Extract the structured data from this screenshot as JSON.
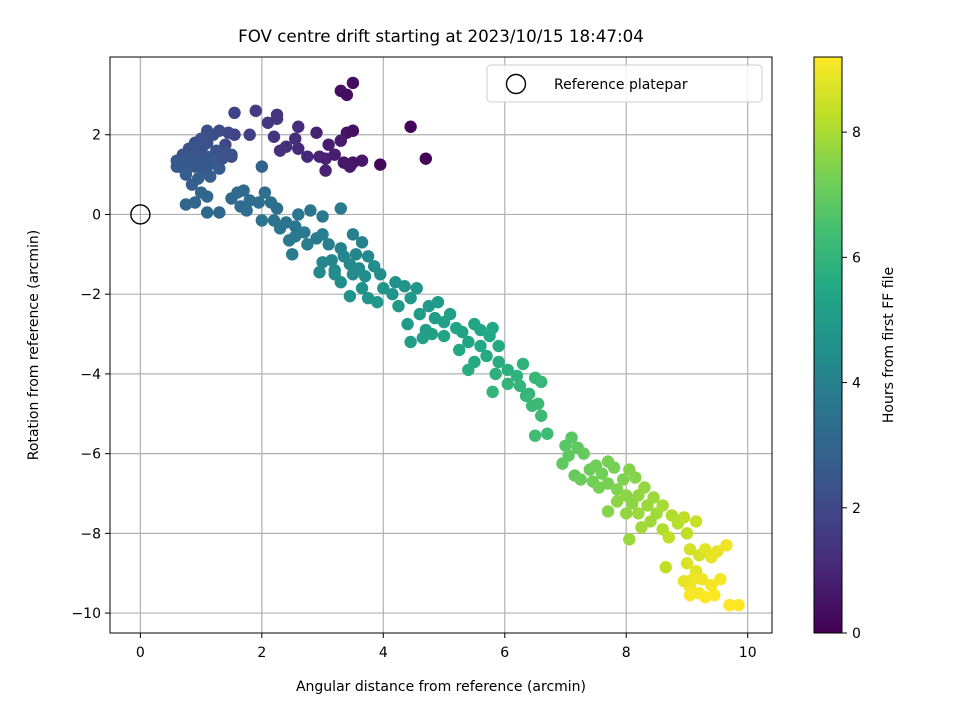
{
  "chart_data": {
    "type": "scatter",
    "title": "FOV centre drift starting at 2023/10/15 18:47:04",
    "xlabel": "Angular distance from reference (arcmin)",
    "ylabel": "Rotation from reference (arcmin)",
    "colorbar_label": "Hours from first FF file",
    "xlim": [
      -0.5,
      10.4
    ],
    "ylim": [
      -10.5,
      3.95
    ],
    "xticks": [
      0,
      2,
      4,
      6,
      8,
      10
    ],
    "yticks": [
      -10,
      -8,
      -6,
      -4,
      -2,
      0,
      2
    ],
    "xtick_labels": [
      "0",
      "2",
      "4",
      "6",
      "8",
      "10"
    ],
    "ytick_labels": [
      "−10",
      "−8",
      "−6",
      "−4",
      "−2",
      "0",
      "2"
    ],
    "colorbar_range": [
      0,
      9.2
    ],
    "colorbar_ticks": [
      0,
      2,
      4,
      6,
      8
    ],
    "colorbar_tick_labels": [
      "0",
      "2",
      "4",
      "6",
      "8"
    ],
    "colormap": "viridis",
    "grid": true,
    "legend": {
      "placement": "top-right",
      "entries": [
        "Reference platepar"
      ]
    },
    "reference_point": {
      "x": 0,
      "y": 0,
      "label": "Reference platepar"
    },
    "series": [
      {
        "points": [
          [
            3.5,
            3.3,
            0.3
          ],
          [
            3.4,
            3.0,
            0.3
          ],
          [
            3.3,
            3.1,
            0.4
          ],
          [
            4.45,
            2.2,
            0.1
          ],
          [
            4.7,
            1.4,
            0.1
          ],
          [
            3.95,
            1.25,
            0.2
          ],
          [
            3.4,
            2.05,
            0.5
          ],
          [
            3.5,
            2.1,
            0.4
          ],
          [
            3.65,
            1.35,
            0.6
          ],
          [
            3.5,
            1.3,
            0.5
          ],
          [
            3.35,
            1.3,
            0.6
          ],
          [
            3.45,
            1.2,
            0.6
          ],
          [
            3.1,
            1.75,
            0.8
          ],
          [
            3.05,
            1.4,
            0.9
          ],
          [
            3.05,
            1.1,
            0.9
          ],
          [
            2.95,
            1.45,
            0.9
          ],
          [
            2.9,
            2.05,
            0.9
          ],
          [
            3.2,
            1.5,
            0.8
          ],
          [
            3.3,
            1.85,
            0.7
          ],
          [
            2.75,
            1.45,
            1.0
          ],
          [
            2.6,
            1.65,
            1.1
          ],
          [
            2.55,
            1.9,
            1.2
          ],
          [
            2.6,
            2.2,
            1.2
          ],
          [
            2.3,
            1.6,
            1.3
          ],
          [
            2.4,
            1.7,
            1.3
          ],
          [
            2.2,
            1.95,
            1.4
          ],
          [
            2.1,
            2.3,
            1.5
          ],
          [
            2.25,
            2.4,
            1.5
          ],
          [
            2.25,
            2.5,
            1.4
          ],
          [
            1.9,
            2.6,
            1.6
          ],
          [
            1.8,
            2.0,
            1.7
          ],
          [
            1.55,
            2.55,
            1.8
          ],
          [
            1.55,
            2.0,
            1.8
          ],
          [
            1.45,
            2.05,
            1.9
          ],
          [
            1.4,
            1.75,
            2.0
          ],
          [
            1.5,
            1.45,
            2.0
          ],
          [
            1.3,
            2.1,
            2.1
          ],
          [
            1.2,
            2.0,
            2.1
          ],
          [
            1.1,
            2.1,
            2.2
          ],
          [
            1.1,
            1.8,
            2.2
          ],
          [
            1.0,
            1.9,
            2.3
          ],
          [
            0.9,
            1.8,
            2.3
          ],
          [
            0.8,
            1.65,
            2.4
          ],
          [
            0.7,
            1.5,
            2.4
          ],
          [
            0.6,
            1.35,
            2.5
          ],
          [
            0.65,
            1.2,
            2.5
          ],
          [
            0.75,
            1.1,
            2.6
          ],
          [
            0.85,
            1.3,
            2.6
          ],
          [
            0.9,
            1.5,
            2.5
          ],
          [
            1.0,
            1.6,
            2.4
          ],
          [
            1.1,
            1.45,
            2.5
          ],
          [
            1.2,
            1.3,
            2.6
          ],
          [
            1.3,
            1.15,
            2.7
          ],
          [
            1.05,
            1.05,
            2.7
          ],
          [
            0.95,
            0.9,
            2.8
          ],
          [
            0.85,
            0.75,
            2.8
          ],
          [
            0.75,
            1.0,
            2.7
          ],
          [
            0.6,
            1.2,
            2.6
          ],
          [
            1.15,
            0.95,
            2.8
          ],
          [
            1.25,
            1.6,
            2.4
          ],
          [
            1.35,
            1.4,
            2.4
          ],
          [
            0.9,
            1.2,
            2.5
          ],
          [
            0.8,
            1.4,
            2.5
          ],
          [
            0.7,
            1.3,
            2.6
          ],
          [
            1.0,
            1.35,
            2.5
          ],
          [
            1.1,
            1.2,
            2.6
          ],
          [
            1.5,
            1.5,
            2.3
          ],
          [
            1.4,
            1.55,
            2.3
          ],
          [
            0.95,
            1.65,
            2.4
          ],
          [
            1.05,
            1.75,
            2.3
          ],
          [
            2.0,
            1.2,
            2.9
          ],
          [
            1.0,
            0.55,
            3.0
          ],
          [
            1.1,
            0.45,
            3.0
          ],
          [
            0.9,
            0.3,
            3.0
          ],
          [
            0.75,
            0.25,
            3.0
          ],
          [
            1.1,
            0.05,
            3.1
          ],
          [
            1.3,
            0.05,
            3.1
          ],
          [
            1.5,
            0.4,
            3.1
          ],
          [
            1.6,
            0.55,
            3.2
          ],
          [
            1.7,
            0.6,
            3.2
          ],
          [
            1.8,
            0.35,
            3.3
          ],
          [
            2.05,
            0.55,
            3.3
          ],
          [
            1.65,
            0.2,
            3.2
          ],
          [
            1.75,
            0.1,
            3.3
          ],
          [
            1.95,
            0.3,
            3.3
          ],
          [
            2.15,
            0.3,
            3.4
          ],
          [
            2.25,
            0.15,
            3.4
          ],
          [
            2.0,
            -0.15,
            3.5
          ],
          [
            2.2,
            -0.15,
            3.5
          ],
          [
            2.4,
            -0.2,
            3.5
          ],
          [
            2.55,
            -0.3,
            3.6
          ],
          [
            2.6,
            0.0,
            3.6
          ],
          [
            2.8,
            0.1,
            3.6
          ],
          [
            2.55,
            -0.55,
            3.7
          ],
          [
            2.45,
            -0.65,
            3.7
          ],
          [
            2.3,
            -0.35,
            3.6
          ],
          [
            2.7,
            -0.45,
            3.7
          ],
          [
            2.9,
            -0.6,
            3.8
          ],
          [
            2.5,
            -1.0,
            3.8
          ],
          [
            2.75,
            -0.75,
            3.8
          ],
          [
            3.0,
            -0.5,
            3.9
          ],
          [
            3.1,
            -0.75,
            3.9
          ],
          [
            3.3,
            -0.85,
            4.0
          ],
          [
            3.0,
            -0.05,
            3.7
          ],
          [
            3.3,
            0.15,
            3.7
          ],
          [
            3.5,
            -0.5,
            4.0
          ],
          [
            3.65,
            -0.7,
            4.1
          ],
          [
            3.55,
            -1.0,
            4.2
          ],
          [
            3.35,
            -1.05,
            4.2
          ],
          [
            3.15,
            -1.15,
            4.2
          ],
          [
            3.0,
            -1.2,
            4.2
          ],
          [
            2.95,
            -1.45,
            4.3
          ],
          [
            3.2,
            -1.4,
            4.3
          ],
          [
            3.45,
            -1.25,
            4.3
          ],
          [
            3.6,
            -1.35,
            4.4
          ],
          [
            3.75,
            -1.05,
            4.3
          ],
          [
            3.85,
            -1.3,
            4.4
          ],
          [
            3.95,
            -1.5,
            4.5
          ],
          [
            3.7,
            -1.55,
            4.5
          ],
          [
            3.5,
            -1.5,
            4.4
          ],
          [
            3.3,
            -1.7,
            4.5
          ],
          [
            3.2,
            -1.5,
            4.4
          ],
          [
            3.65,
            -1.85,
            4.6
          ],
          [
            3.45,
            -2.05,
            4.6
          ],
          [
            3.75,
            -2.1,
            4.7
          ],
          [
            4.0,
            -1.85,
            4.7
          ],
          [
            4.15,
            -2.0,
            4.7
          ],
          [
            3.9,
            -2.2,
            4.8
          ],
          [
            4.2,
            -1.7,
            4.6
          ],
          [
            4.35,
            -1.8,
            4.7
          ],
          [
            4.55,
            -1.85,
            4.8
          ],
          [
            4.45,
            -2.1,
            4.9
          ],
          [
            4.25,
            -2.3,
            4.9
          ],
          [
            4.6,
            -2.5,
            5.0
          ],
          [
            4.4,
            -2.75,
            5.0
          ],
          [
            4.75,
            -2.3,
            5.0
          ],
          [
            4.9,
            -2.2,
            5.0
          ],
          [
            4.85,
            -2.6,
            5.1
          ],
          [
            4.7,
            -2.9,
            5.1
          ],
          [
            4.45,
            -3.2,
            5.1
          ],
          [
            4.65,
            -3.1,
            5.2
          ],
          [
            4.8,
            -3.0,
            5.2
          ],
          [
            5.0,
            -2.7,
            5.2
          ],
          [
            5.1,
            -2.5,
            5.2
          ],
          [
            5.2,
            -2.85,
            5.3
          ],
          [
            5.0,
            -3.05,
            5.3
          ],
          [
            5.3,
            -2.95,
            5.3
          ],
          [
            5.5,
            -2.75,
            5.4
          ],
          [
            5.6,
            -2.9,
            5.4
          ],
          [
            5.4,
            -3.2,
            5.4
          ],
          [
            5.25,
            -3.4,
            5.5
          ],
          [
            5.6,
            -3.3,
            5.5
          ],
          [
            5.75,
            -3.05,
            5.5
          ],
          [
            5.8,
            -2.85,
            5.5
          ],
          [
            5.9,
            -3.3,
            5.6
          ],
          [
            5.7,
            -3.55,
            5.6
          ],
          [
            5.5,
            -3.7,
            5.6
          ],
          [
            5.4,
            -3.9,
            5.7
          ],
          [
            5.9,
            -3.7,
            5.7
          ],
          [
            5.85,
            -4.0,
            5.8
          ],
          [
            6.05,
            -3.9,
            5.8
          ],
          [
            6.2,
            -4.05,
            5.9
          ],
          [
            6.3,
            -3.75,
            5.9
          ],
          [
            6.25,
            -4.3,
            6.0
          ],
          [
            6.4,
            -4.5,
            6.0
          ],
          [
            6.05,
            -4.25,
            6.0
          ],
          [
            5.8,
            -4.45,
            6.0
          ],
          [
            6.5,
            -4.1,
            6.1
          ],
          [
            6.6,
            -4.2,
            6.1
          ],
          [
            6.45,
            -4.8,
            6.2
          ],
          [
            6.6,
            -5.05,
            6.2
          ],
          [
            6.5,
            -5.55,
            6.3
          ],
          [
            6.7,
            -5.5,
            6.3
          ],
          [
            6.55,
            -4.75,
            6.2
          ],
          [
            6.35,
            -4.55,
            6.1
          ],
          [
            7.0,
            -5.8,
            6.8
          ],
          [
            7.1,
            -5.6,
            6.8
          ],
          [
            7.05,
            -6.05,
            6.9
          ],
          [
            6.95,
            -6.25,
            6.9
          ],
          [
            7.2,
            -5.85,
            6.9
          ],
          [
            7.3,
            -6.0,
            7.0
          ],
          [
            7.15,
            -6.55,
            7.0
          ],
          [
            7.25,
            -6.65,
            7.1
          ],
          [
            7.4,
            -6.4,
            7.1
          ],
          [
            7.5,
            -6.3,
            7.2
          ],
          [
            7.45,
            -6.7,
            7.2
          ],
          [
            7.6,
            -6.5,
            7.2
          ],
          [
            7.7,
            -6.2,
            7.3
          ],
          [
            7.8,
            -6.35,
            7.3
          ],
          [
            7.7,
            -6.75,
            7.3
          ],
          [
            7.55,
            -6.85,
            7.3
          ],
          [
            7.85,
            -6.9,
            7.4
          ],
          [
            7.95,
            -6.65,
            7.4
          ],
          [
            8.05,
            -6.4,
            7.5
          ],
          [
            8.15,
            -6.6,
            7.5
          ],
          [
            8.0,
            -7.05,
            7.6
          ],
          [
            7.85,
            -7.2,
            7.6
          ],
          [
            7.7,
            -7.45,
            7.5
          ],
          [
            8.1,
            -7.25,
            7.6
          ],
          [
            8.2,
            -7.05,
            7.7
          ],
          [
            8.3,
            -6.85,
            7.7
          ],
          [
            8.35,
            -7.3,
            7.8
          ],
          [
            8.2,
            -7.5,
            7.8
          ],
          [
            8.0,
            -7.5,
            7.7
          ],
          [
            8.45,
            -7.1,
            7.8
          ],
          [
            8.5,
            -7.5,
            7.9
          ],
          [
            8.4,
            -7.7,
            7.9
          ],
          [
            8.25,
            -7.85,
            7.9
          ],
          [
            8.6,
            -7.3,
            8.0
          ],
          [
            8.75,
            -7.55,
            8.1
          ],
          [
            8.6,
            -7.9,
            8.1
          ],
          [
            8.85,
            -7.75,
            8.2
          ],
          [
            8.95,
            -7.6,
            8.3
          ],
          [
            8.7,
            -8.1,
            8.3
          ],
          [
            9.0,
            -8.0,
            8.3
          ],
          [
            9.15,
            -7.7,
            8.4
          ],
          [
            8.05,
            -8.15,
            7.8
          ],
          [
            8.65,
            -8.85,
            8.3
          ],
          [
            9.05,
            -8.4,
            8.6
          ],
          [
            9.2,
            -8.55,
            8.6
          ],
          [
            9.0,
            -8.75,
            8.7
          ],
          [
            9.15,
            -8.95,
            8.8
          ],
          [
            9.3,
            -8.4,
            8.8
          ],
          [
            9.5,
            -8.45,
            8.9
          ],
          [
            9.4,
            -8.6,
            8.9
          ],
          [
            9.25,
            -9.15,
            9.0
          ],
          [
            9.05,
            -9.35,
            9.0
          ],
          [
            9.2,
            -9.5,
            9.1
          ],
          [
            9.4,
            -9.3,
            9.1
          ],
          [
            9.55,
            -9.15,
            9.1
          ],
          [
            9.05,
            -9.55,
            9.1
          ],
          [
            9.3,
            -9.6,
            9.2
          ],
          [
            9.45,
            -9.55,
            9.2
          ],
          [
            9.7,
            -9.8,
            9.2
          ],
          [
            9.85,
            -9.8,
            9.2
          ],
          [
            9.65,
            -8.3,
            9.0
          ],
          [
            9.1,
            -9.15,
            9.0
          ],
          [
            8.95,
            -9.2,
            8.9
          ]
        ]
      }
    ]
  }
}
